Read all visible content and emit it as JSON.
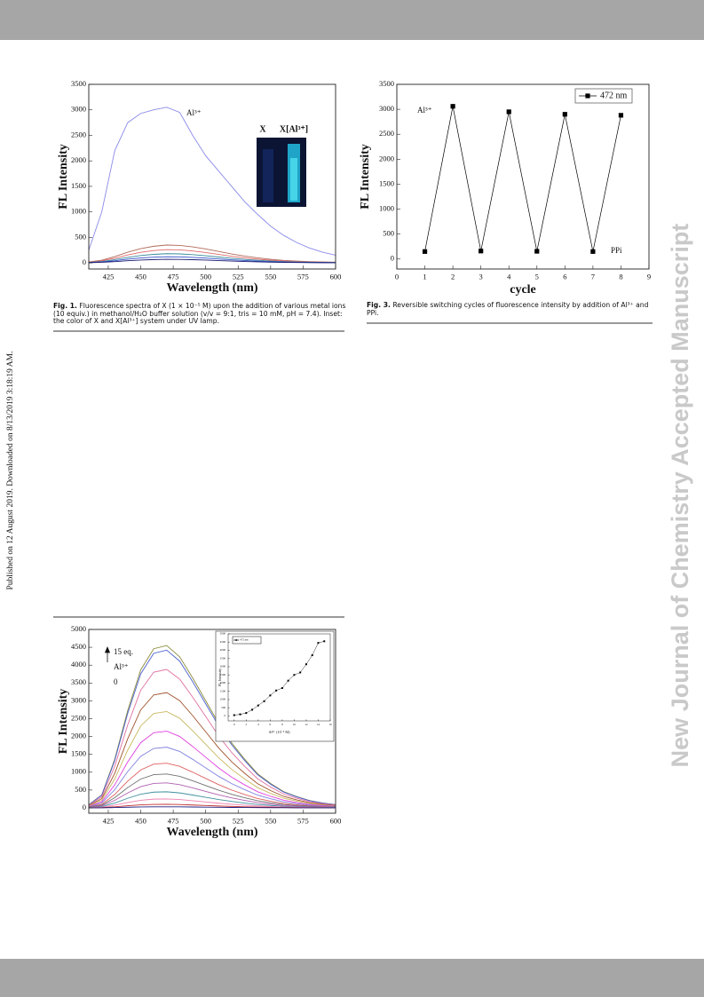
{
  "page": {
    "side_note": "Published on 12 August 2019. Downloaded on 8/13/2019 3:18:19 AM.",
    "watermark": "New Journal of Chemistry Accepted Manuscript"
  },
  "captions": [
    {
      "label": "Fig. 1.",
      "text": "Fluorescence spectra of X (1 × 10⁻⁵ M) upon the addition of various metal ions (10 equiv.) in methanol/H₂O buffer solution (v/v = 9:1, tris = 10 mM, pH = 7.4). Inset: the color of X and X[Al³⁺] system under UV lamp."
    },
    {
      "label": "Fig. 3.",
      "text": "Reversible switching cycles of fluorescence intensity by addition of Al³⁺ and PPi."
    }
  ],
  "chart_data": [
    {
      "type": "line",
      "xlabel": "Wavelength (nm)",
      "ylabel": "FL Intensity",
      "annotations": [
        "Al³⁺"
      ],
      "inset_labels": [
        "X",
        "X[Al³⁺]"
      ],
      "xlim": [
        410,
        600
      ],
      "xticks": [
        425,
        450,
        475,
        500,
        525,
        550,
        575,
        600
      ],
      "ylim": [
        -120,
        3500
      ],
      "yticks": [
        0,
        500,
        1000,
        1500,
        2000,
        2500,
        3000,
        3500
      ],
      "x": [
        410,
        420,
        430,
        440,
        450,
        460,
        470,
        480,
        490,
        500,
        510,
        520,
        530,
        540,
        550,
        560,
        570,
        580,
        590,
        600
      ],
      "series": [
        {
          "color": "#8a8ae8",
          "values": [
            250,
            1000,
            2200,
            2750,
            2930,
            3000,
            3050,
            2950,
            2500,
            2100,
            1800,
            1500,
            1200,
            950,
            720,
            540,
            400,
            290,
            210,
            150
          ]
        },
        {
          "color": "#b06a5a",
          "values": [
            18,
            53,
            123,
            210,
            280,
            326,
            350,
            343,
            315,
            273,
            224,
            175,
            133,
            98,
            70,
            49,
            35,
            25,
            18,
            14
          ]
        },
        {
          "color": "#e06a6a",
          "values": [
            13,
            39,
            91,
            156,
            208,
            242,
            260,
            255,
            234,
            203,
            166,
            130,
            99,
            73,
            52,
            36,
            26,
            18,
            13,
            10
          ]
        },
        {
          "color": "#3a8a9a",
          "values": [
            9,
            27,
            63,
            108,
            144,
            167,
            180,
            176,
            162,
            140,
            115,
            90,
            68,
            50,
            36,
            25,
            18,
            13,
            9,
            7
          ]
        },
        {
          "color": "#3050c8",
          "values": [
            6,
            18,
            42,
            72,
            96,
            112,
            120,
            118,
            108,
            94,
            77,
            60,
            46,
            34,
            24,
            17,
            12,
            8,
            6,
            5
          ]
        },
        {
          "color": "#1a1a70",
          "values": [
            4,
            11,
            25,
            42,
            56,
            65,
            70,
            69,
            63,
            55,
            45,
            35,
            27,
            20,
            14,
            10,
            7,
            5,
            4,
            3
          ]
        }
      ]
    },
    {
      "type": "line",
      "markers": true,
      "legend": "upper right",
      "xlabel": "cycle",
      "ylabel": "FL Intensity",
      "annotations": [
        "Al³⁺",
        "PPi"
      ],
      "xlim": [
        0,
        9
      ],
      "xticks": [
        0,
        1,
        2,
        3,
        4,
        5,
        6,
        7,
        8,
        9
      ],
      "ylim": [
        -200,
        3500
      ],
      "yticks": [
        0,
        500,
        1000,
        1500,
        2000,
        2500,
        3000,
        3500
      ],
      "x": [
        1,
        2,
        3,
        4,
        5,
        6,
        7,
        8
      ],
      "series": [
        {
          "name": "472 nm",
          "color": "#000000",
          "values": [
            150,
            3060,
            160,
            2950,
            155,
            2900,
            150,
            2880
          ]
        }
      ]
    },
    {
      "type": "line",
      "xlabel": "Wavelength (nm)",
      "ylabel": "FL Intensity",
      "annotations": [
        "15 eq.",
        "Al³⁺",
        "0"
      ],
      "xlim": [
        410,
        600
      ],
      "xticks": [
        425,
        450,
        475,
        500,
        525,
        550,
        575,
        600
      ],
      "ylim": [
        -150,
        5000
      ],
      "yticks": [
        0,
        500,
        1000,
        1500,
        2000,
        2500,
        3000,
        3500,
        4000,
        4500,
        5000
      ],
      "x": [
        410,
        420,
        430,
        440,
        450,
        460,
        470,
        480,
        490,
        500,
        510,
        520,
        530,
        540,
        550,
        560,
        570,
        580,
        590,
        600
      ],
      "series": [
        {
          "color": "#8b8b3a",
          "values": [
            91,
            364,
            1365,
            2730,
            3868,
            4459,
            4550,
            4232,
            3640,
            3003,
            2366,
            1820,
            1365,
            956,
            683,
            455,
            319,
            205,
            137,
            91
          ]
        },
        {
          "color": "#4a5fd0",
          "values": [
            88,
            354,
            1326,
            2652,
            3757,
            4332,
            4420,
            4111,
            3536,
            2917,
            2298,
            1768,
            1326,
            928,
            663,
            442,
            309,
            199,
            133,
            88
          ]
        },
        {
          "color": "#e070a0",
          "values": [
            78,
            310,
            1164,
            2328,
            3298,
            3802,
            3880,
            3608,
            3104,
            2561,
            2018,
            1552,
            1164,
            815,
            582,
            388,
            272,
            175,
            116,
            78
          ]
        },
        {
          "color": "#a0522d",
          "values": [
            65,
            258,
            969,
            1938,
            2746,
            3165,
            3230,
            3004,
            2584,
            2132,
            1680,
            1292,
            969,
            678,
            485,
            323,
            226,
            145,
            97,
            65
          ]
        },
        {
          "color": "#c8b860",
          "values": [
            54,
            216,
            810,
            1620,
            2295,
            2646,
            2700,
            2511,
            2160,
            1782,
            1404,
            1080,
            810,
            567,
            405,
            270,
            189,
            122,
            81,
            54
          ]
        },
        {
          "color": "#e040e0",
          "values": [
            43,
            172,
            645,
            1290,
            1828,
            2107,
            2150,
            2000,
            1720,
            1419,
            1118,
            860,
            645,
            452,
            323,
            215,
            151,
            97,
            65,
            43
          ]
        },
        {
          "color": "#8080e0",
          "values": [
            34,
            136,
            510,
            1020,
            1445,
            1666,
            1700,
            1581,
            1360,
            1122,
            884,
            680,
            510,
            357,
            255,
            170,
            119,
            77,
            51,
            34
          ]
        },
        {
          "color": "#e06060",
          "values": [
            25,
            100,
            375,
            750,
            1063,
            1225,
            1250,
            1163,
            1000,
            825,
            650,
            500,
            375,
            263,
            188,
            125,
            88,
            56,
            38,
            25
          ]
        },
        {
          "color": "#707070",
          "values": [
            19,
            76,
            285,
            570,
            808,
            931,
            950,
            884,
            760,
            627,
            494,
            380,
            285,
            200,
            143,
            95,
            67,
            43,
            29,
            19
          ]
        },
        {
          "color": "#b060b0",
          "values": [
            14,
            56,
            210,
            420,
            595,
            686,
            700,
            651,
            560,
            462,
            364,
            280,
            210,
            147,
            105,
            70,
            49,
            32,
            21,
            14
          ]
        },
        {
          "color": "#4090a0",
          "values": [
            9,
            36,
            135,
            270,
            383,
            441,
            450,
            419,
            360,
            297,
            234,
            180,
            135,
            95,
            68,
            45,
            32,
            20,
            14,
            9
          ]
        },
        {
          "color": "#f080b0",
          "values": [
            5,
            20,
            75,
            150,
            213,
            245,
            250,
            233,
            200,
            165,
            130,
            100,
            75,
            53,
            38,
            25,
            18,
            11,
            8,
            5
          ]
        },
        {
          "color": "#c03030",
          "values": [
            2,
            8,
            30,
            60,
            85,
            98,
            100,
            93,
            80,
            66,
            52,
            40,
            30,
            21,
            15,
            10,
            7,
            5,
            3,
            2
          ]
        },
        {
          "color": "#202080",
          "values": [
            1,
            2,
            9,
            18,
            26,
            29,
            30,
            28,
            24,
            20,
            16,
            12,
            9,
            6,
            5,
            3,
            2,
            1,
            1,
            1
          ]
        }
      ]
    },
    {
      "type": "line",
      "markers": true,
      "legend": "upper left",
      "xlabel": "Al³⁺ (10⁻⁵ M)",
      "ylabel": "FL Intensity",
      "xlim": [
        -1,
        16
      ],
      "xticks": [
        0,
        2,
        4,
        6,
        8,
        10,
        12,
        14,
        16
      ],
      "ylim": [
        -300,
        5000
      ],
      "yticks": [
        0,
        500,
        1000,
        1500,
        2000,
        2500,
        3000,
        3500,
        4000,
        4500,
        5000
      ],
      "x": [
        0,
        1,
        2,
        3,
        4,
        5,
        6,
        7,
        8,
        9,
        10,
        11,
        12,
        13,
        14,
        15
      ],
      "series": [
        {
          "name": "472 nm",
          "color": "#000000",
          "values": [
            50,
            100,
            180,
            380,
            640,
            900,
            1250,
            1550,
            1700,
            2150,
            2500,
            2650,
            3150,
            3700,
            4450,
            4550
          ]
        }
      ]
    }
  ]
}
